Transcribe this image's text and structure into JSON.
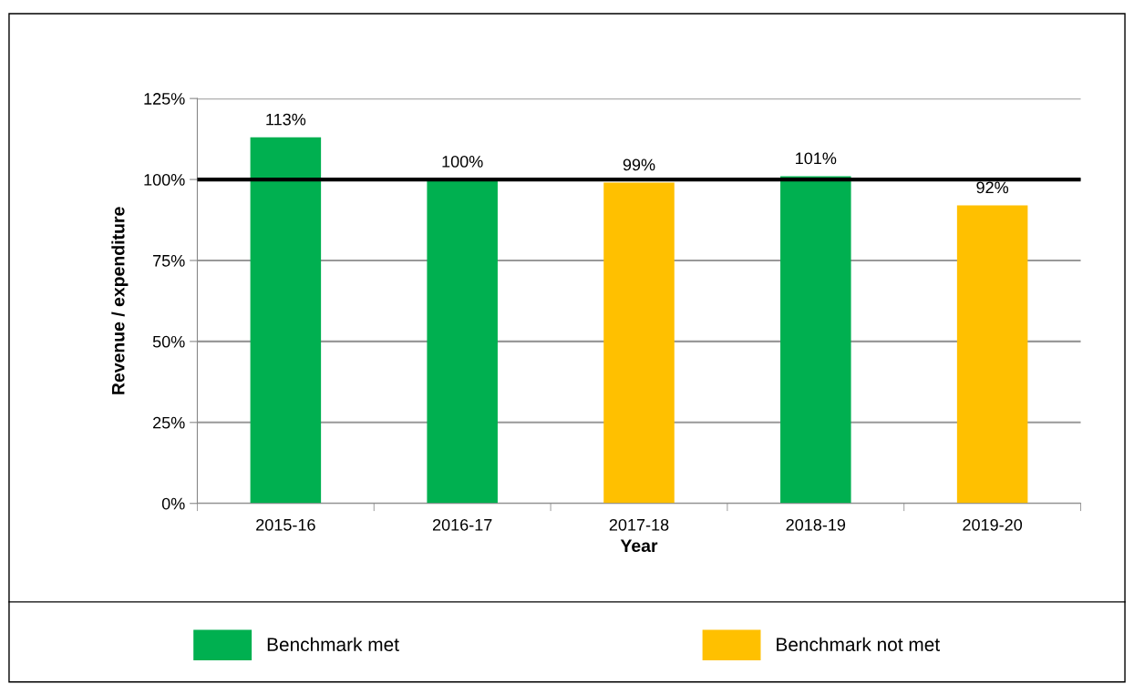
{
  "chart_data": {
    "type": "bar",
    "categories": [
      "2015-16",
      "2016-17",
      "2017-18",
      "2018-19",
      "2019-20"
    ],
    "series": [
      {
        "name": "Benchmark met",
        "color": "#00b050",
        "values": [
          113,
          100,
          null,
          101,
          null
        ],
        "value_labels": [
          "113%",
          "100%",
          null,
          "101%",
          null
        ]
      },
      {
        "name": "Benchmark not met",
        "color": "#ffc000",
        "values": [
          null,
          null,
          99,
          null,
          92
        ],
        "value_labels": [
          null,
          null,
          "99%",
          null,
          "92%"
        ]
      }
    ],
    "xlabel": "Year",
    "ylabel": "Revenue / expenditure",
    "ylim": [
      0,
      125
    ],
    "yticks": [
      {
        "value": 0,
        "label": "0%"
      },
      {
        "value": 25,
        "label": "25%"
      },
      {
        "value": 50,
        "label": "50%"
      },
      {
        "value": 75,
        "label": "75%"
      },
      {
        "value": 100,
        "label": "100%"
      },
      {
        "value": 125,
        "label": "125%"
      }
    ],
    "grid": "y",
    "legend": "bottom",
    "ref_lines": [
      {
        "axis": "y",
        "value": 100,
        "color": "#000000"
      }
    ]
  }
}
